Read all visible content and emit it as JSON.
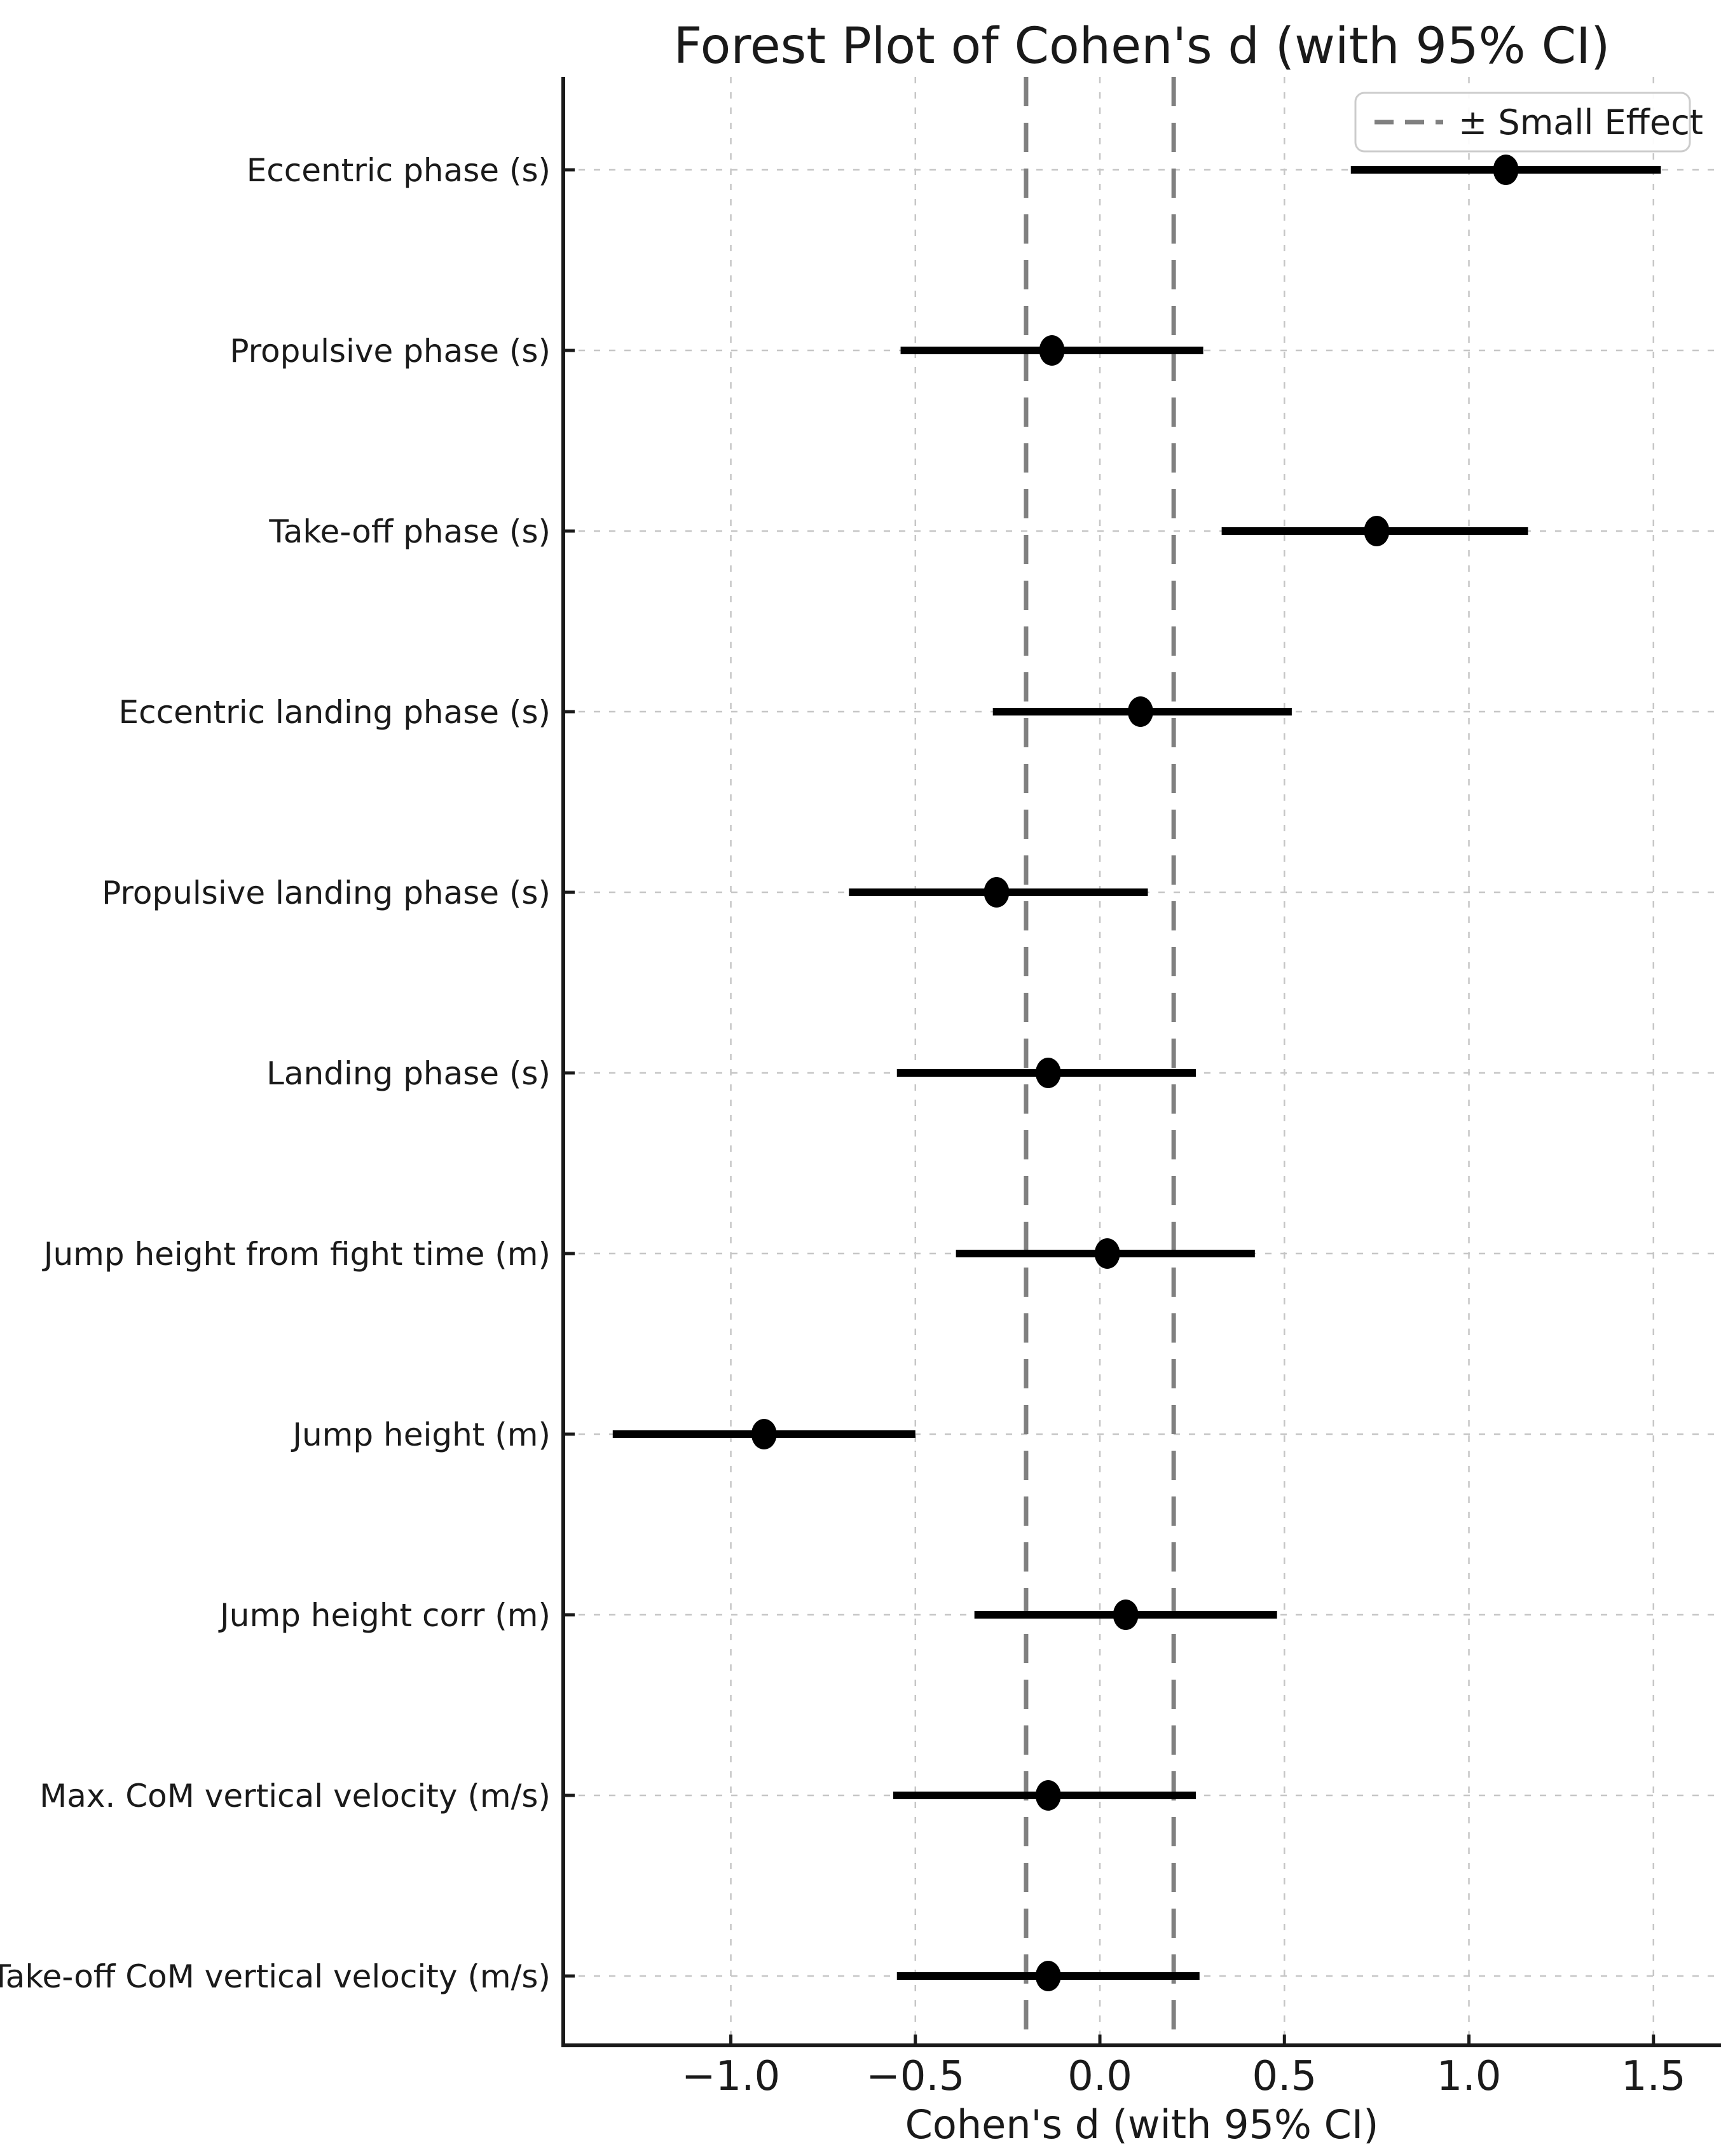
{
  "figure": {
    "background": "#ffffff"
  },
  "chart_data": {
    "type": "scatter",
    "variant": "forest-plot",
    "title": "Forest Plot of Cohen's d (with 95% CI)",
    "xlabel": "Cohen's d (with 95% CI)",
    "xlim": [
      -1.454,
      1.683
    ],
    "xticks": [
      -1.0,
      -0.5,
      0.0,
      0.5,
      1.0,
      1.5
    ],
    "xtick_labels": [
      "−1.0",
      "−0.5",
      "0.0",
      "0.5",
      "1.0",
      "1.5"
    ],
    "grid": true,
    "reference_lines": {
      "values": [
        -0.2,
        0.2
      ],
      "style": "dashed",
      "color": "#808080",
      "legend_label": "± Small Effect"
    },
    "legend": {
      "position": "upper-right",
      "entries": [
        {
          "label": "± Small Effect",
          "line_style": "dashed",
          "line_color": "#808080"
        }
      ]
    },
    "rows": [
      {
        "label": "Eccentric phase (s)",
        "d": 1.1,
        "ci_low": 0.68,
        "ci_high": 1.52
      },
      {
        "label": "Propulsive phase (s)",
        "d": -0.13,
        "ci_low": -0.54,
        "ci_high": 0.28
      },
      {
        "label": "Take-off phase (s)",
        "d": 0.75,
        "ci_low": 0.33,
        "ci_high": 1.16
      },
      {
        "label": "Eccentric landing phase (s)",
        "d": 0.11,
        "ci_low": -0.29,
        "ci_high": 0.52
      },
      {
        "label": "Propulsive landing phase (s)",
        "d": -0.28,
        "ci_low": -0.68,
        "ci_high": 0.13
      },
      {
        "label": "Landing phase (s)",
        "d": -0.14,
        "ci_low": -0.55,
        "ci_high": 0.26
      },
      {
        "label": "Jump height from fight time (m)",
        "d": 0.02,
        "ci_low": -0.39,
        "ci_high": 0.42
      },
      {
        "label": "Jump height (m)",
        "d": -0.91,
        "ci_low": -1.32,
        "ci_high": -0.5
      },
      {
        "label": "Jump height corr (m)",
        "d": 0.07,
        "ci_low": -0.34,
        "ci_high": 0.48
      },
      {
        "label": "Max. CoM vertical velocity (m/s)",
        "d": -0.14,
        "ci_low": -0.56,
        "ci_high": 0.26
      },
      {
        "label": "Take-off CoM vertical velocity (m/s)",
        "d": -0.14,
        "ci_low": -0.55,
        "ci_high": 0.27
      }
    ],
    "colors": {
      "marker": "#000000",
      "ci_line": "#000000",
      "axis": "#1a1a1a",
      "text": "#1a1a1a",
      "grid": "#c6c6c6",
      "reference": "#808080",
      "legend_border": "#cccccc"
    }
  }
}
